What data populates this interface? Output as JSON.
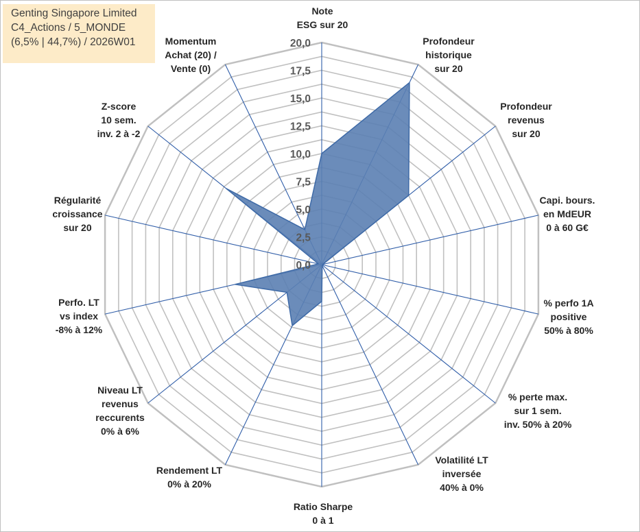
{
  "info": {
    "line1": "Genting Singapore Limited",
    "line2": "C4_Actions / 5_MONDE",
    "line3": "(6,5% | 44,7%) / 2026W01"
  },
  "colors": {
    "grid": "#c0c0c0",
    "spoke": "#2f5da8",
    "area_fill": "#5b7fb2",
    "area_stroke": "#3e6aa7",
    "info_bg": "#fdebc8"
  },
  "chart_data": {
    "type": "radar",
    "title": "",
    "r_range": [
      0,
      20
    ],
    "r_ticks": [
      "0,0",
      "2,5",
      "5,0",
      "7,5",
      "10,0",
      "12,5",
      "15,0",
      "17,5",
      "20,0"
    ],
    "grid": true,
    "legend": "none",
    "axes": [
      [
        "Note",
        "ESG sur 20"
      ],
      [
        "Profondeur",
        "historique",
        "sur 20"
      ],
      [
        "Profondeur",
        "revenus",
        "sur 20"
      ],
      [
        "Capi. bours.",
        "en MdEUR",
        "0 à 60 G€"
      ],
      [
        "% perfo 1A",
        "positive",
        "50% à 80%"
      ],
      [
        "% perte max.",
        "sur 1 sem.",
        "inv. 50% à 20%"
      ],
      [
        "Volatilité LT",
        "inversée",
        "40% à 0%"
      ],
      [
        "Ratio Sharpe",
        "0 à 1"
      ],
      [
        "Rendement LT",
        "0% à 20%"
      ],
      [
        "Niveau LT",
        "revenus",
        "reccurents",
        "0% à 6%"
      ],
      [
        "Perfo. LT",
        "vs index",
        "-8% à 12%"
      ],
      [
        "Régularité",
        "croissance",
        "sur 20"
      ],
      [
        "Z-score",
        "10 sem.",
        "inv. 2 à -2"
      ],
      [
        "Momentum",
        "Achat (20) /",
        "Vente (0)"
      ]
    ],
    "values": [
      10.0,
      18.2,
      10.0,
      0.1,
      0.1,
      0.1,
      0.1,
      3.3,
      6.1,
      4.0,
      8.0,
      0.3,
      11.0,
      3.5
    ]
  }
}
